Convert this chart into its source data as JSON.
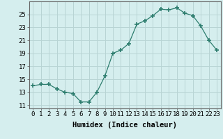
{
  "x": [
    0,
    1,
    2,
    3,
    4,
    5,
    6,
    7,
    8,
    9,
    10,
    11,
    12,
    13,
    14,
    15,
    16,
    17,
    18,
    19,
    20,
    21,
    22,
    23
  ],
  "y": [
    14.0,
    14.2,
    14.2,
    13.5,
    13.0,
    12.8,
    11.5,
    11.5,
    13.0,
    15.5,
    19.0,
    19.5,
    20.5,
    23.5,
    24.0,
    24.8,
    25.8,
    25.7,
    26.0,
    25.2,
    24.8,
    23.2,
    21.0,
    19.5
  ],
  "line_color": "#2d7d6e",
  "marker": "+",
  "marker_size": 4,
  "bg_color": "#d5eeee",
  "grid_color": "#b8d4d4",
  "xlabel": "Humidex (Indice chaleur)",
  "xlim": [
    -0.5,
    23.5
  ],
  "ylim": [
    10.5,
    27
  ],
  "yticks": [
    11,
    13,
    15,
    17,
    19,
    21,
    23,
    25
  ],
  "xticks": [
    0,
    1,
    2,
    3,
    4,
    5,
    6,
    7,
    8,
    9,
    10,
    11,
    12,
    13,
    14,
    15,
    16,
    17,
    18,
    19,
    20,
    21,
    22,
    23
  ],
  "xlabel_fontsize": 7.5,
  "tick_fontsize": 6.5,
  "linewidth": 0.9,
  "marker_linewidth": 1.2
}
